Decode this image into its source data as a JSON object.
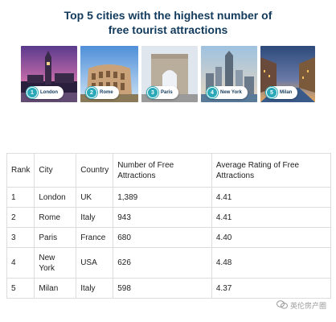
{
  "title_line1": "Top 5 cities with the highest number of",
  "title_line2": "free tourist attractions",
  "photos": [
    {
      "num": "1",
      "city": "London"
    },
    {
      "num": "2",
      "city": "Rome"
    },
    {
      "num": "3",
      "city": "Paris"
    },
    {
      "num": "4",
      "city": "New York"
    },
    {
      "num": "5",
      "city": "Milan"
    }
  ],
  "table": {
    "headers": [
      "Rank",
      "City",
      "Country",
      "Number of Free Attractions",
      "Average Rating of Free Attractions"
    ],
    "rows": [
      [
        "1",
        "London",
        "UK",
        "1,389",
        "4.41"
      ],
      [
        "2",
        "Rome",
        "Italy",
        "943",
        "4.41"
      ],
      [
        "3",
        "Paris",
        "France",
        "680",
        "4.40"
      ],
      [
        "4",
        "New York",
        "USA",
        "626",
        "4.48"
      ],
      [
        "5",
        "Milan",
        "Italy",
        "598",
        "4.37"
      ]
    ]
  },
  "watermark": "英伦房产圈",
  "colors": {
    "title": "#123a5c",
    "badge": "#2aa8b8"
  }
}
